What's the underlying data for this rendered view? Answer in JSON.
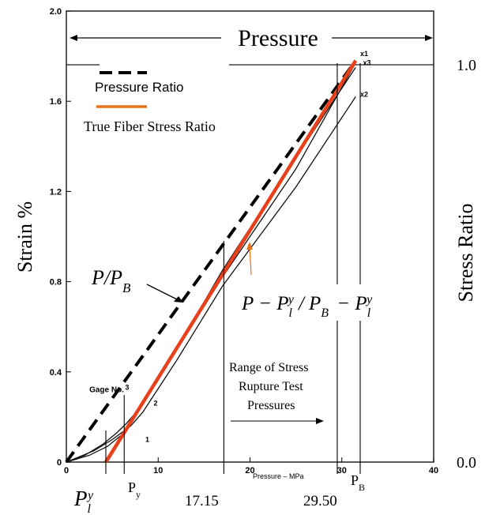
{
  "chart_data": {
    "type": "line",
    "title": "",
    "xlabel": "Pressure – MPa",
    "ylabel": "Strain %",
    "y2label": "Stress Ratio",
    "xlim": [
      0,
      40
    ],
    "ylim": [
      0,
      2.0
    ],
    "y2lim": [
      0.0,
      1.0
    ],
    "x_ticks": [
      "0",
      "10",
      "20",
      "30",
      "40"
    ],
    "y_ticks": [
      "0",
      "0.4",
      "0.8",
      "1.2",
      "1.6",
      "2.0"
    ],
    "y2_ticks": [
      "0.0",
      "1.0"
    ],
    "grid": false,
    "legend": [
      {
        "label": "Pressure Ratio",
        "style": "dashed",
        "color": "#000000"
      },
      {
        "label": "True Fiber Stress Ratio",
        "style": "solid",
        "color": "#e8491d"
      }
    ],
    "series": [
      {
        "name": "Pressure Ratio",
        "style": "dashed",
        "color": "#000000",
        "points": [
          [
            0,
            0
          ],
          [
            31.5,
            1.78
          ]
        ]
      },
      {
        "name": "True Fiber Stress Ratio",
        "style": "solid",
        "color": "#e8401a",
        "points": [
          [
            4.3,
            0
          ],
          [
            31.5,
            1.78
          ]
        ]
      },
      {
        "name": "Gage No. 1",
        "style": "solid",
        "color": "#111111",
        "points": [
          [
            0,
            0
          ],
          [
            2,
            0.03
          ],
          [
            4,
            0.08
          ],
          [
            5.5,
            0.13
          ],
          [
            6.5,
            0.17
          ],
          [
            8,
            0.24
          ],
          [
            17,
            0.82
          ],
          [
            25,
            1.3
          ],
          [
            31.5,
            1.77
          ]
        ]
      },
      {
        "name": "Gage No. 2",
        "style": "solid",
        "color": "#111111",
        "points": [
          [
            0,
            0
          ],
          [
            3,
            0.05
          ],
          [
            5,
            0.1
          ],
          [
            7,
            0.16
          ],
          [
            8.3,
            0.22
          ],
          [
            12,
            0.45
          ],
          [
            17,
            0.78
          ],
          [
            25,
            1.22
          ],
          [
            31.5,
            1.62
          ]
        ]
      },
      {
        "name": "Gage No. 3",
        "style": "solid",
        "color": "#111111",
        "points": [
          [
            0,
            0
          ],
          [
            2.5,
            0.03
          ],
          [
            4.5,
            0.07
          ],
          [
            6,
            0.12
          ],
          [
            7,
            0.18
          ],
          [
            12,
            0.5
          ],
          [
            17,
            0.85
          ],
          [
            25,
            1.35
          ],
          [
            31.5,
            1.75
          ]
        ]
      }
    ],
    "curve_labels": [
      {
        "text": "x1",
        "x": 32.0,
        "y": 1.8
      },
      {
        "text": "x3",
        "x": 32.3,
        "y": 1.76
      },
      {
        "text": "x2",
        "x": 32.0,
        "y": 1.62
      },
      {
        "text": "1",
        "x": 8.6,
        "y": 0.09
      },
      {
        "text": "2",
        "x": 9.5,
        "y": 0.25
      },
      {
        "text": "3",
        "x": 6.4,
        "y": 0.32
      },
      {
        "text": "Gage No.",
        "x": 2.5,
        "y": 0.31
      }
    ],
    "reference_lines": [
      {
        "name": "Pl^y",
        "x": 4.3
      },
      {
        "name": "Py",
        "x": 6.3
      },
      {
        "name": "17.15",
        "x": 17.15
      },
      {
        "name": "29.50",
        "x": 29.5
      },
      {
        "name": "PB",
        "x": 32.0
      }
    ],
    "annotations": {
      "pressure_label": "Pressure",
      "p_over_pb": "P/P_B",
      "stress_ratio_formula": "P − P_l^y / P_B − P_l^y",
      "range_note": [
        "Range of Stress",
        "Rupture Test",
        "Pressures"
      ],
      "tick_17": "17.15",
      "tick_29": "29.50",
      "py": "Py",
      "pb": "PB",
      "pl_base": "P",
      "pl_sub": "l",
      "pl_sup": "y"
    }
  }
}
